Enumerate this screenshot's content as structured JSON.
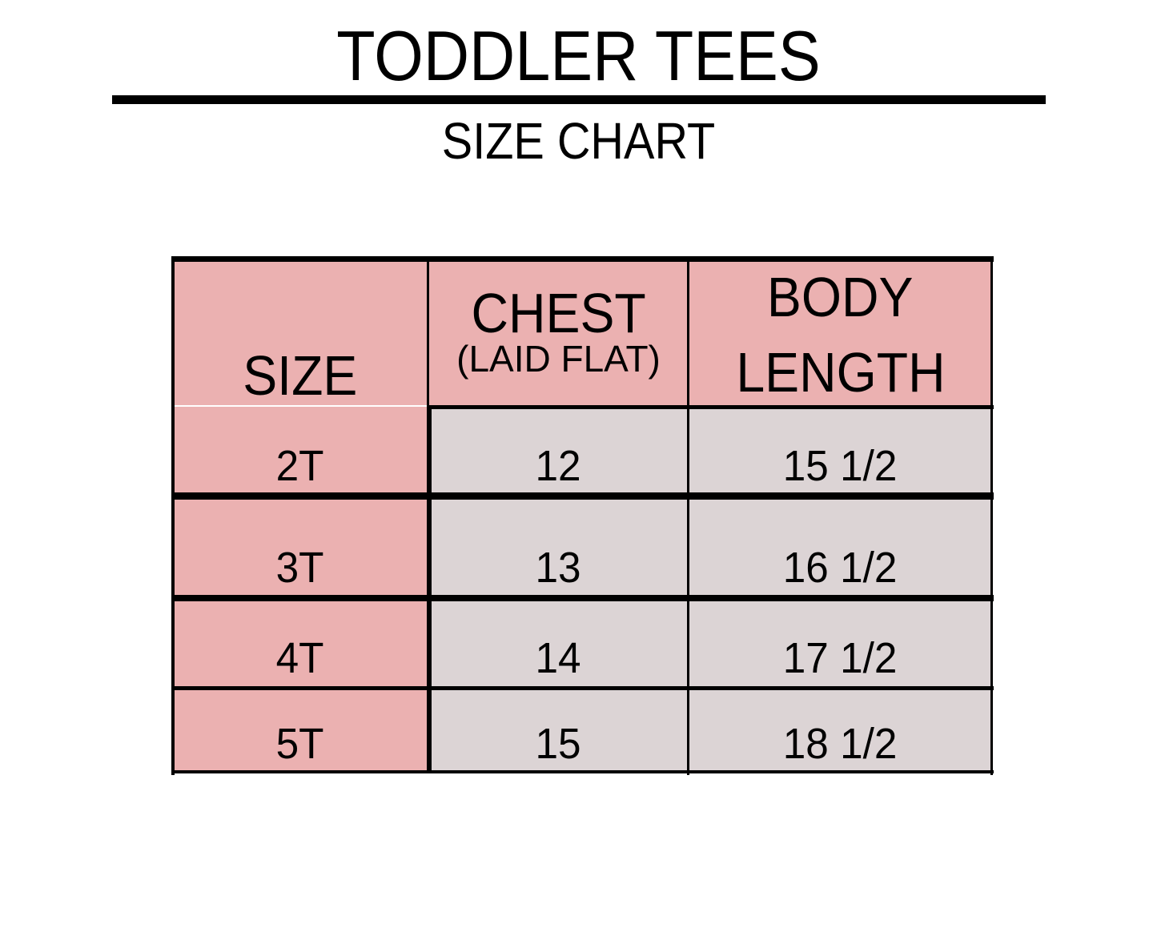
{
  "header": {
    "title": "TODDLER TEES",
    "subtitle": "SIZE CHART"
  },
  "table": {
    "columns": [
      {
        "label": "SIZE"
      },
      {
        "label": "CHEST",
        "sublabel": "(LAID FLAT)"
      },
      {
        "label_line1": "BODY",
        "label_line2": "LENGTH"
      }
    ],
    "rows": [
      {
        "size": "2T",
        "chest": "12",
        "body_length": "15 1/2"
      },
      {
        "size": "3T",
        "chest": "13",
        "body_length": "16 1/2"
      },
      {
        "size": "4T",
        "chest": "14",
        "body_length": "17 1/2"
      },
      {
        "size": "5T",
        "chest": "15",
        "body_length": "18 1/2"
      }
    ]
  },
  "colors": {
    "header_fill": "#ebb1b1",
    "size_column_fill": "#ebb1b1",
    "value_fill": "#dcd4d5",
    "border": "#000000"
  }
}
